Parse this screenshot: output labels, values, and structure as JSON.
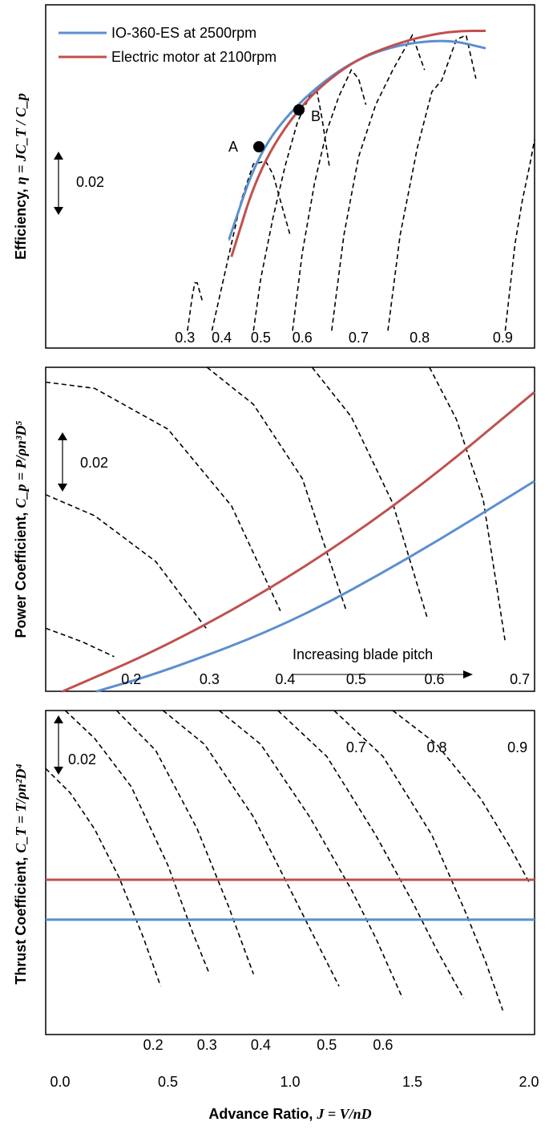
{
  "colors": {
    "blue": "#5b8fd0",
    "red": "#c0504d",
    "dash": "#000000"
  },
  "legend": [
    {
      "name": "IO-360-ES at 2500rpm",
      "color": "#5b8fd0"
    },
    {
      "name": "Electric motor at 2100rpm",
      "color": "#c0504d"
    }
  ],
  "x_axis": {
    "label_text": "Advance Ratio, ",
    "label_formula": "J = V/nD",
    "ticks": [
      "0.0",
      "0.5",
      "1.0",
      "1.5",
      "2.0"
    ],
    "range": [
      0,
      2
    ]
  },
  "panels": {
    "efficiency": {
      "label_text": "Efficiency, ",
      "label_formula": "η = JC_T / C_p",
      "scale_bar": "0.02",
      "points": [
        {
          "name": "A",
          "x": 0.87
        },
        {
          "name": "B",
          "x": 1.04
        }
      ]
    },
    "power": {
      "label_text": "Power Coefficient, ",
      "label_formula": "C_p = P/ρn³D⁵",
      "scale_bar": "0.02",
      "annotation": "Increasing blade pitch"
    },
    "thrust": {
      "label_text": "Thrust Coefficient, ",
      "label_formula": "C_T = T/ρn²D⁴",
      "scale_bar": "0.02"
    }
  },
  "chart_data": [
    {
      "type": "line",
      "title": "",
      "ylabel": "Efficiency, η = JC_T / C_p",
      "xlabel": "",
      "xlim": [
        0,
        2
      ],
      "series": [
        {
          "name": "IO-360-ES at 2500rpm",
          "color": "#5b8fd0",
          "x": [
            0.75,
            0.87,
            1.04,
            1.25,
            1.45,
            1.65,
            1.8
          ],
          "y": [
            0.695,
            0.795,
            0.855,
            0.9,
            0.92,
            0.925,
            0.915
          ]
        },
        {
          "name": "Electric motor at 2100rpm",
          "color": "#c0504d",
          "x": [
            0.76,
            0.87,
            1.04,
            1.25,
            1.45,
            1.6,
            1.7,
            1.8
          ],
          "y": [
            0.675,
            0.775,
            0.85,
            0.9,
            0.922,
            0.932,
            0.935,
            0.935
          ]
        }
      ],
      "pitch_curves": [
        {
          "label": "0.3",
          "x": [
            0.58,
            0.6,
            0.61,
            0.62,
            0.64
          ],
          "y": [
            0.59,
            0.63,
            0.645,
            0.645,
            0.625
          ]
        },
        {
          "label": "0.4",
          "x": [
            0.68,
            0.72,
            0.76,
            0.8,
            0.85,
            0.9,
            0.93,
            0.97,
            1.0
          ],
          "y": [
            0.59,
            0.64,
            0.69,
            0.74,
            0.782,
            0.785,
            0.77,
            0.73,
            0.7
          ]
        },
        {
          "label": "0.5",
          "x": [
            0.85,
            0.88,
            0.93,
            0.98,
            1.03,
            1.08,
            1.11,
            1.13,
            1.16
          ],
          "y": [
            0.59,
            0.65,
            0.72,
            0.78,
            0.83,
            0.86,
            0.865,
            0.835,
            0.78
          ]
        },
        {
          "label": "0.6",
          "x": [
            1.01,
            1.05,
            1.1,
            1.15,
            1.2,
            1.25,
            1.28,
            1.31
          ],
          "y": [
            0.59,
            0.68,
            0.76,
            0.82,
            0.86,
            0.89,
            0.88,
            0.85
          ]
        },
        {
          "label": "0.7",
          "x": [
            1.17,
            1.22,
            1.28,
            1.35,
            1.42,
            1.47,
            1.5,
            1.55
          ],
          "y": [
            0.59,
            0.7,
            0.79,
            0.85,
            0.89,
            0.915,
            0.93,
            0.89
          ]
        },
        {
          "label": "0.8",
          "x": [
            1.4,
            1.45,
            1.52,
            1.58,
            1.62,
            1.68,
            1.72,
            1.76
          ],
          "y": [
            0.59,
            0.7,
            0.8,
            0.865,
            0.878,
            0.925,
            0.93,
            0.88
          ]
        },
        {
          "label": "0.9",
          "x": [
            1.88,
            1.9,
            1.92,
            1.95,
            1.98,
            2.0
          ],
          "y": [
            0.59,
            0.64,
            0.69,
            0.74,
            0.78,
            0.81
          ]
        }
      ]
    },
    {
      "type": "line",
      "title": "",
      "ylabel": "Power Coefficient, C_p = P/ρn³D⁵",
      "xlabel": "",
      "xlim": [
        0,
        2
      ],
      "series": [
        {
          "name": "IO-360-ES at 2500rpm",
          "color": "#5b8fd0",
          "x": [
            0.21,
            0.5,
            1.0,
            1.5,
            2.0
          ],
          "y": [
            0.0,
            0.017,
            0.055,
            0.109,
            0.17
          ]
        },
        {
          "name": "Electric motor at 2100rpm",
          "color": "#c0504d",
          "x": [
            0.07,
            0.5,
            1.0,
            1.5,
            2.0
          ],
          "y": [
            0.0,
            0.037,
            0.092,
            0.16,
            0.242
          ]
        }
      ],
      "pitch_curves": [
        {
          "label": "0.2",
          "x": [
            0.0,
            0.15,
            0.28
          ],
          "y": [
            0.051,
            0.04,
            0.028
          ]
        },
        {
          "label": "0.3",
          "x": [
            0.0,
            0.2,
            0.45,
            0.66
          ],
          "y": [
            0.159,
            0.142,
            0.105,
            0.05
          ]
        },
        {
          "label": "0.4",
          "x": [
            0.0,
            0.2,
            0.5,
            0.76,
            0.96
          ],
          "y": [
            0.25,
            0.245,
            0.212,
            0.15,
            0.065
          ]
        },
        {
          "label": "0.5",
          "x": [
            0.66,
            0.85,
            1.05,
            1.23
          ],
          "y": [
            0.262,
            0.232,
            0.172,
            0.065
          ]
        },
        {
          "label": "0.6",
          "x": [
            1.09,
            1.25,
            1.42,
            1.56
          ],
          "y": [
            0.262,
            0.222,
            0.152,
            0.06
          ]
        },
        {
          "label": "0.7",
          "x": [
            1.57,
            1.68,
            1.79,
            1.88
          ],
          "y": [
            0.262,
            0.22,
            0.155,
            0.04
          ]
        }
      ]
    },
    {
      "type": "line",
      "title": "",
      "ylabel": "Thrust Coefficient, C_T = T/ρn²D⁴",
      "xlabel": "Advance Ratio, J = V/nD",
      "xlim": [
        0,
        2
      ],
      "series": [
        {
          "name": "IO-360-ES at 2500rpm",
          "color": "#5b8fd0",
          "x": [
            0.0,
            2.0
          ],
          "y": [
            0.095,
            0.095
          ]
        },
        {
          "name": "Electric motor at 2100rpm",
          "color": "#c0504d",
          "x": [
            0.0,
            2.0
          ],
          "y": [
            0.128,
            0.128
          ]
        }
      ],
      "pitch_curves": [
        {
          "label": "0.2",
          "x": [
            0.0,
            0.1,
            0.2,
            0.3,
            0.4,
            0.47
          ],
          "y": [
            0.22,
            0.2,
            0.17,
            0.13,
            0.08,
            0.04
          ]
        },
        {
          "label": "0.3",
          "x": [
            0.08,
            0.2,
            0.35,
            0.5,
            0.6,
            0.67
          ],
          "y": [
            0.268,
            0.245,
            0.205,
            0.14,
            0.085,
            0.05
          ]
        },
        {
          "label": "0.4",
          "x": [
            0.29,
            0.45,
            0.62,
            0.75,
            0.85
          ],
          "y": [
            0.268,
            0.235,
            0.17,
            0.105,
            0.05
          ]
        },
        {
          "label": "0.5",
          "x": [
            0.48,
            0.65,
            0.85,
            1.0,
            1.1,
            1.2
          ],
          "y": [
            0.268,
            0.24,
            0.18,
            0.12,
            0.08,
            0.04
          ]
        },
        {
          "label": "0.6",
          "x": [
            0.71,
            0.88,
            1.08,
            1.25,
            1.35,
            1.46
          ],
          "y": [
            0.268,
            0.24,
            0.18,
            0.12,
            0.08,
            0.03
          ]
        },
        {
          "label": "0.7",
          "x": [
            0.95,
            1.15,
            1.35,
            1.5,
            1.6,
            1.71
          ],
          "y": [
            0.268,
            0.23,
            0.165,
            0.11,
            0.07,
            0.03
          ]
        },
        {
          "label": "0.8",
          "x": [
            1.18,
            1.38,
            1.58,
            1.72,
            1.8,
            1.87
          ],
          "y": [
            0.268,
            0.23,
            0.165,
            0.1,
            0.06,
            0.02
          ]
        },
        {
          "label": "0.9",
          "x": [
            1.42,
            1.6,
            1.78,
            1.9,
            1.98
          ],
          "y": [
            0.268,
            0.24,
            0.195,
            0.155,
            0.125
          ]
        }
      ]
    }
  ]
}
